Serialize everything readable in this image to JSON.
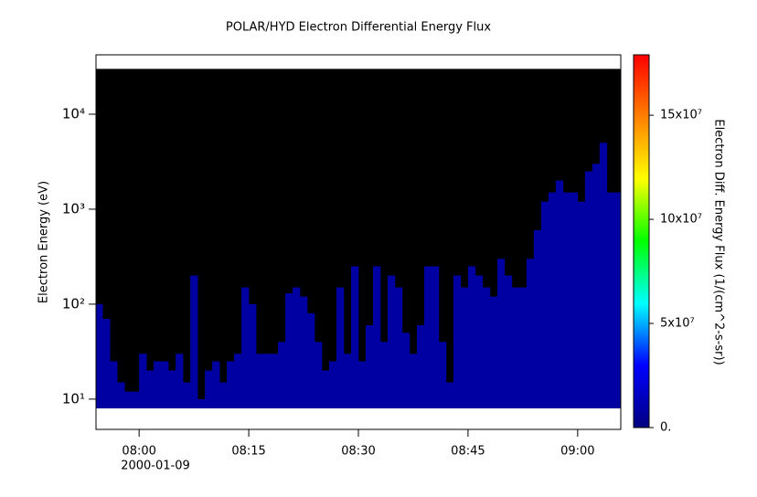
{
  "chart_data": {
    "type": "spectrogram",
    "title": "POLAR/HYD  Electron Differential Energy Flux",
    "ylabel": "Electron Energy (eV)",
    "colorbar_label": "Electron Diff. Energy Flux (1/(cm^2-s-sr))",
    "date_label": "2000-01-09",
    "xlim": [
      474.1,
      545.9
    ],
    "xticks": [
      {
        "value": 480,
        "label": "08:00"
      },
      {
        "value": 495,
        "label": "08:15"
      },
      {
        "value": 510,
        "label": "08:30"
      },
      {
        "value": 525,
        "label": "08:45"
      },
      {
        "value": 540,
        "label": "09:00"
      }
    ],
    "log_y": true,
    "ylim": [
      4.8,
      42200
    ],
    "yticks": [
      {
        "value": 10,
        "label": "10¹"
      },
      {
        "value": 100,
        "label": "10²"
      },
      {
        "value": 1000,
        "label": "10³"
      },
      {
        "value": 10000,
        "label": "10⁴"
      }
    ],
    "energy_range": [
      8,
      30000
    ],
    "background": "#000000",
    "clim": [
      0,
      179000000
    ],
    "cticks": [
      {
        "value": 0,
        "label": "0."
      },
      {
        "value": 50000000,
        "label": "5x10⁷"
      },
      {
        "value": 100000000,
        "label": "10x10⁷"
      },
      {
        "value": 150000000,
        "label": "15x10⁷"
      }
    ],
    "colormap": [
      "#000080",
      "#0000ff",
      "#00ffff",
      "#00ff00",
      "#ffff00",
      "#ff8000",
      "#ff0000"
    ],
    "x": [
      474,
      475,
      476,
      477,
      478,
      479,
      480,
      481,
      482,
      483,
      484,
      485,
      486,
      487,
      488,
      489,
      490,
      491,
      492,
      493,
      494,
      495,
      496,
      497,
      498,
      499,
      500,
      501,
      502,
      503,
      504,
      505,
      506,
      507,
      508,
      509,
      510,
      511,
      512,
      513,
      514,
      515,
      516,
      517,
      518,
      519,
      520,
      521,
      522,
      523,
      524,
      525,
      526,
      527,
      528,
      529,
      530,
      531,
      532,
      533,
      534,
      535,
      536,
      537,
      538,
      539,
      540,
      541,
      542,
      543,
      544,
      545
    ],
    "top": [
      100,
      70,
      25,
      15,
      12,
      12,
      30,
      20,
      25,
      25,
      20,
      30,
      15,
      200,
      10,
      20,
      25,
      15,
      25,
      30,
      150,
      100,
      30,
      30,
      30,
      40,
      130,
      150,
      120,
      80,
      40,
      20,
      25,
      150,
      30,
      250,
      25,
      60,
      250,
      40,
      200,
      150,
      50,
      30,
      60,
      250,
      250,
      40,
      15,
      200,
      150,
      250,
      200,
      150,
      120,
      300,
      200,
      150,
      150,
      300,
      600,
      1200,
      1500,
      2000,
      1500,
      1500,
      1200,
      2500,
      3000,
      5000,
      1500,
      1500
    ],
    "flux": [
      8000000,
      8000000,
      8000000,
      8000000,
      8000000,
      8000000,
      8000000,
      8000000,
      8000000,
      8000000,
      8000000,
      8000000,
      8000000,
      8000000,
      8000000,
      8000000,
      8000000,
      8000000,
      8000000,
      8000000,
      8000000,
      8000000,
      8000000,
      8000000,
      8000000,
      8000000,
      8000000,
      8000000,
      8000000,
      8000000,
      8000000,
      8000000,
      8000000,
      8000000,
      8000000,
      8000000,
      8000000,
      8000000,
      8000000,
      8000000,
      8000000,
      8000000,
      8000000,
      8000000,
      8000000,
      8000000,
      8000000,
      8000000,
      8000000,
      8000000,
      8000000,
      8000000,
      8000000,
      8000000,
      8000000,
      8000000,
      8000000,
      8000000,
      8000000,
      8000000,
      8000000,
      8000000,
      8000000,
      8000000,
      8000000,
      8000000,
      8000000,
      8000000,
      8000000,
      8000000,
      8000000,
      8000000
    ]
  }
}
